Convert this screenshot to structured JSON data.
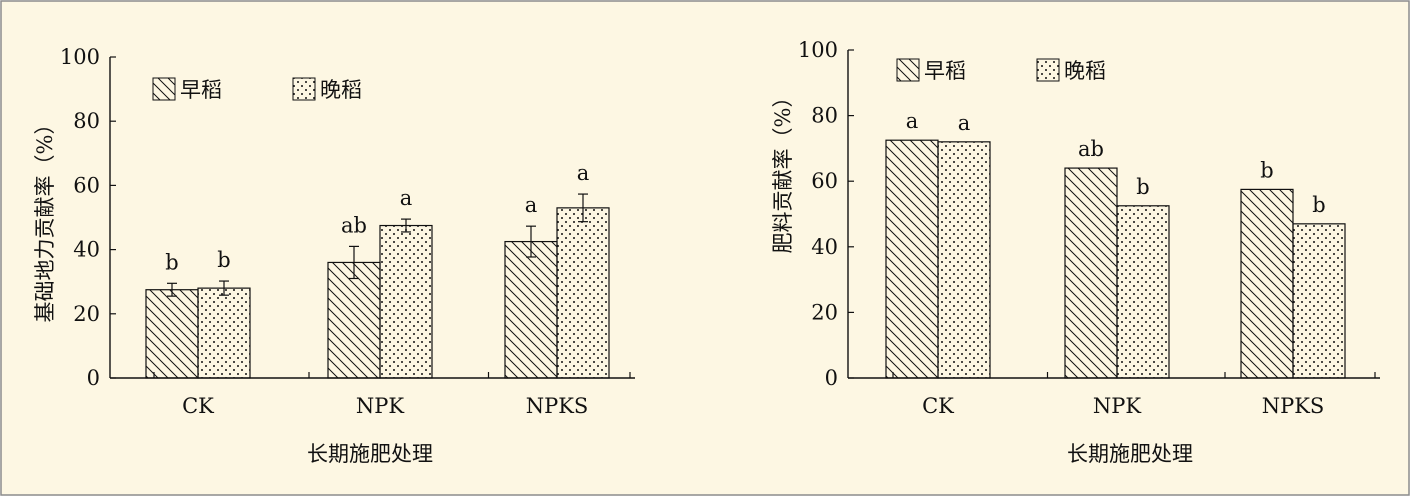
{
  "page": {
    "background": "#FDF7E3",
    "border_color": "#8C8C8C"
  },
  "legend_labels": {
    "early": "早稻",
    "late": "晚稻"
  },
  "chart_data": [
    {
      "type": "bar",
      "ylabel": "基础地力贡献率（%）",
      "xlabel": "长期施肥处理",
      "categories": [
        "CK",
        "NPK",
        "NPKS"
      ],
      "ylim": [
        0,
        100
      ],
      "yticks": [
        0,
        20,
        40,
        60,
        80,
        100
      ],
      "legend_position": "top-left",
      "series": [
        {
          "name": "早稻",
          "pattern": "diagonal-hatch",
          "values": [
            27.5,
            36,
            42.5
          ],
          "errors": [
            2,
            5,
            4.8
          ],
          "labels": [
            "b",
            "ab",
            "a"
          ]
        },
        {
          "name": "晚稻",
          "pattern": "dots",
          "values": [
            28,
            47.5,
            53
          ],
          "errors": [
            2.2,
            2,
            4.3
          ],
          "labels": [
            "b",
            "a",
            "a"
          ]
        }
      ]
    },
    {
      "type": "bar",
      "ylabel": "肥料贡献率（%）",
      "xlabel": "长期施肥处理",
      "categories": [
        "CK",
        "NPK",
        "NPKS"
      ],
      "ylim": [
        0,
        100
      ],
      "yticks": [
        0,
        20,
        40,
        60,
        80,
        100
      ],
      "legend_position": "top-left",
      "series": [
        {
          "name": "早稻",
          "pattern": "diagonal-hatch",
          "values": [
            72.5,
            64,
            57.5
          ],
          "labels": [
            "a",
            "ab",
            "b"
          ]
        },
        {
          "name": "晚稻",
          "pattern": "dots",
          "values": [
            72,
            52.5,
            47
          ],
          "labels": [
            "a",
            "b",
            "b"
          ]
        }
      ]
    }
  ]
}
